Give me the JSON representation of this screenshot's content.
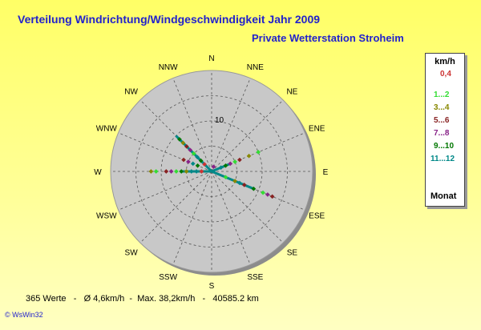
{
  "title": "Verteilung Windrichtung/Windgeschwindigkeit  Jahr 2009",
  "subtitle": "Private Wetterstation Stroheim",
  "legend": {
    "unit": "km/h",
    "footer": "Monat",
    "entries": [
      {
        "label": "0,4",
        "color": "#cc3333"
      },
      {
        "label": "1...2",
        "color": "#33dd33"
      },
      {
        "label": "3...4",
        "color": "#888800"
      },
      {
        "label": "5...6",
        "color": "#882222"
      },
      {
        "label": "7...8",
        "color": "#882288"
      },
      {
        "label": "9...10",
        "color": "#007700"
      },
      {
        "label": "11...12",
        "color": "#008888"
      }
    ]
  },
  "footer": {
    "count": "365 Werte",
    "avg": "Ø 4,6km/h",
    "max": "Max. 38,2km/h",
    "distance": "40585.2 km"
  },
  "credit": "© WsWin32",
  "chart_data": {
    "type": "polar-scatter",
    "directions": [
      "N",
      "NNE",
      "NE",
      "ENE",
      "E",
      "ESE",
      "SE",
      "SSE",
      "S",
      "SSW",
      "SW",
      "WSW",
      "W",
      "WNW",
      "NW",
      "NNW"
    ],
    "ring_labels": [
      {
        "value": 10,
        "label": "10"
      }
    ],
    "r_max": 20,
    "r_grid": [
      5,
      10,
      15
    ],
    "series": [
      {
        "color": "#cc3333",
        "points": [
          {
            "dir": "W",
            "r": 2
          },
          {
            "dir": "NW",
            "r": 2
          }
        ]
      },
      {
        "color": "#33dd33",
        "points": [
          {
            "dir": "W",
            "r": 11
          },
          {
            "dir": "W",
            "r": 7
          },
          {
            "dir": "ESE",
            "r": 11
          },
          {
            "dir": "ENE",
            "r": 10
          },
          {
            "dir": "NW",
            "r": 5
          },
          {
            "dir": "ENE",
            "r": 5
          },
          {
            "dir": "ESE",
            "r": 3
          }
        ]
      },
      {
        "color": "#888800",
        "points": [
          {
            "dir": "W",
            "r": 12
          },
          {
            "dir": "ENE",
            "r": 8
          },
          {
            "dir": "ESE",
            "r": 5
          },
          {
            "dir": "W",
            "r": 5
          },
          {
            "dir": "NW",
            "r": 8
          }
        ]
      },
      {
        "color": "#882222",
        "points": [
          {
            "dir": "W",
            "r": 9
          },
          {
            "dir": "ENE",
            "r": 6
          },
          {
            "dir": "ESE",
            "r": 7
          },
          {
            "dir": "NW",
            "r": 7
          },
          {
            "dir": "WNW",
            "r": 6
          },
          {
            "dir": "ESE",
            "r": 13
          }
        ]
      },
      {
        "color": "#882288",
        "points": [
          {
            "dir": "W",
            "r": 8
          },
          {
            "dir": "WNW",
            "r": 5
          },
          {
            "dir": "NW",
            "r": 6
          },
          {
            "dir": "ESE",
            "r": 12
          },
          {
            "dir": "ENE",
            "r": 4
          },
          {
            "dir": "NNE",
            "r": 1
          }
        ]
      },
      {
        "color": "#007700",
        "points": [
          {
            "dir": "W",
            "r": 6
          },
          {
            "dir": "NW",
            "r": 3
          },
          {
            "dir": "WNW",
            "r": 3
          },
          {
            "dir": "ESE",
            "r": 9
          },
          {
            "dir": "ENE",
            "r": 3
          },
          {
            "dir": "NW",
            "r": 9
          }
        ]
      },
      {
        "color": "#008888",
        "points": [
          {
            "dir": "NW",
            "r": 4
          },
          {
            "dir": "W",
            "r": 4
          },
          {
            "dir": "WNW",
            "r": 4
          },
          {
            "dir": "ESE",
            "r": 6
          },
          {
            "dir": "ENE",
            "r": 2
          },
          {
            "dir": "W",
            "r": 3
          }
        ]
      }
    ],
    "spokes": [
      {
        "dir": "NW",
        "r": 10,
        "color": "#008888"
      },
      {
        "dir": "W",
        "r": 6,
        "color": "#008888"
      },
      {
        "dir": "ESE",
        "r": 9,
        "color": "#008888"
      },
      {
        "dir": "ENE",
        "r": 4,
        "color": "#008888"
      }
    ]
  }
}
